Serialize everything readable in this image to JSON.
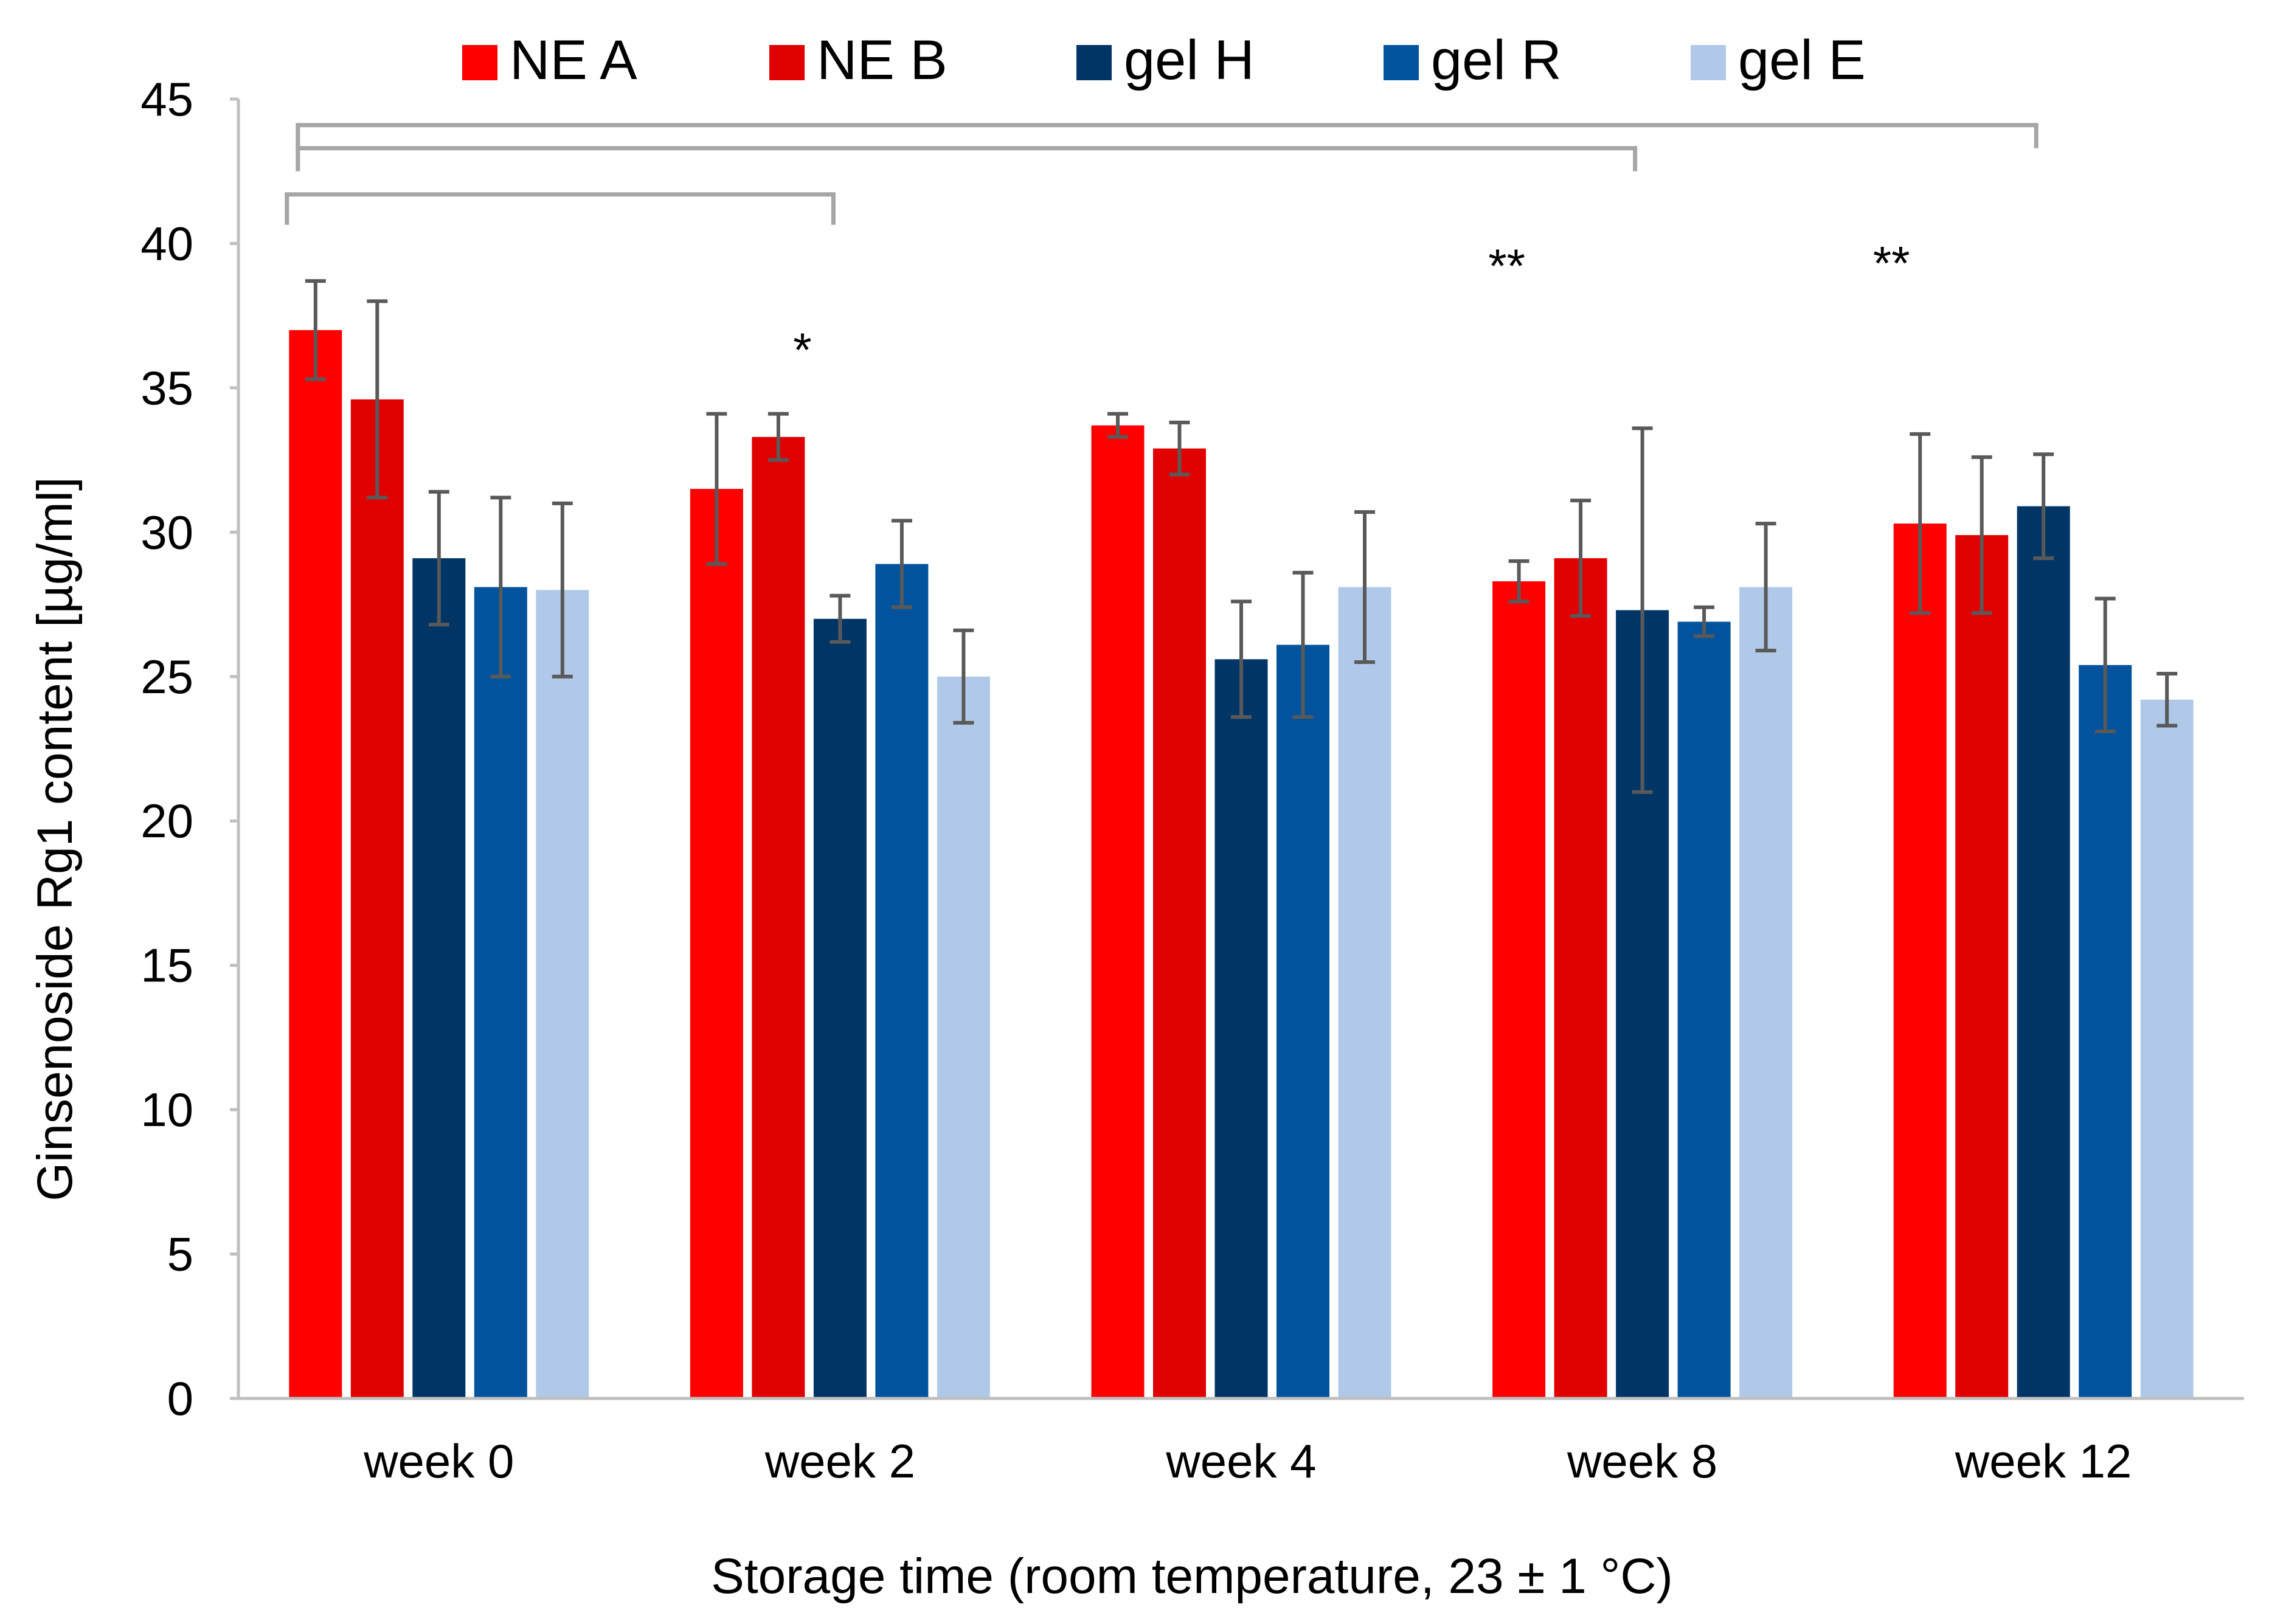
{
  "chart_data": {
    "type": "bar",
    "title": "",
    "xlabel": "Storage time (room temperature, 23 ± 1 °C)",
    "ylabel": "Ginsenoside Rg1 content [µg/ml]",
    "ylim": [
      0,
      45
    ],
    "yticks": [
      0,
      5,
      10,
      15,
      20,
      25,
      30,
      35,
      40,
      45
    ],
    "grid": false,
    "legend_position": "top",
    "categories": [
      "week 0",
      "week 2",
      "week 4",
      "week 8",
      "week 12"
    ],
    "series": [
      {
        "name": "NE A",
        "color": "#ff0000",
        "values": [
          37.0,
          31.5,
          33.7,
          28.3,
          30.3
        ],
        "errors": [
          1.7,
          2.6,
          0.4,
          0.7,
          3.1
        ]
      },
      {
        "name": "NE B",
        "color": "#e00000",
        "values": [
          34.6,
          33.3,
          32.9,
          29.1,
          29.9
        ],
        "errors": [
          3.4,
          0.8,
          0.9,
          2.0,
          2.7
        ]
      },
      {
        "name": "gel H",
        "color": "#003566",
        "values": [
          29.1,
          27.0,
          25.6,
          27.3,
          30.9
        ],
        "errors": [
          2.3,
          0.8,
          2.0,
          6.3,
          1.8
        ]
      },
      {
        "name": "gel R",
        "color": "#00539c",
        "values": [
          28.1,
          28.9,
          26.1,
          26.9,
          25.4
        ],
        "errors": [
          3.1,
          1.5,
          2.5,
          0.5,
          2.3
        ]
      },
      {
        "name": "gel E",
        "color": "#b0c9e8",
        "values": [
          28.0,
          25.0,
          28.1,
          28.1,
          24.2
        ],
        "errors": [
          3.0,
          1.6,
          2.6,
          2.2,
          0.9
        ]
      }
    ],
    "annotations": [
      {
        "text": "*",
        "category": "week 2",
        "y": 36.6
      },
      {
        "text": "**",
        "category": "week 8",
        "y": 39.5
      },
      {
        "text": "**",
        "category": "week 12",
        "y": 39.6
      }
    ],
    "significance_brackets": [
      {
        "from": "week 0",
        "to": "week 2",
        "y": 41.7
      },
      {
        "from": "week 0",
        "to": "week 8",
        "y": 43.3
      },
      {
        "from": "week 0",
        "to": "week 12",
        "y": 44.1
      }
    ]
  }
}
